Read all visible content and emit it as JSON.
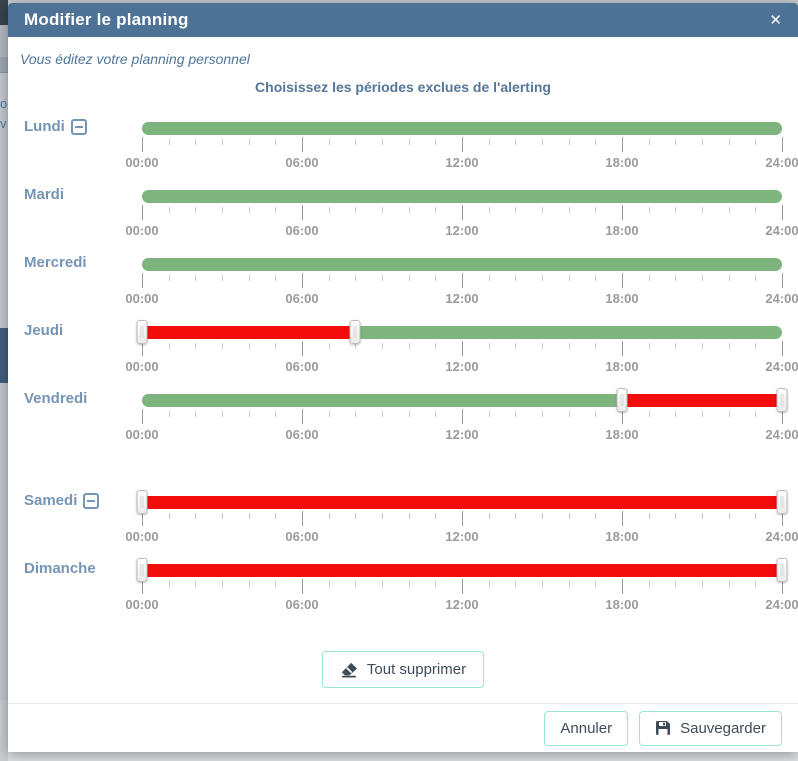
{
  "background": {
    "fragments": [
      "on",
      "v"
    ]
  },
  "modal": {
    "title": "Modifier le planning",
    "icons": {
      "close": "✕"
    },
    "subtitle": "Vous éditez votre planning personnel",
    "heading": "Choisissez les périodes exclues de l'alerting"
  },
  "schedule": {
    "axis": {
      "hours_total": 24,
      "minor_tick_every_hours": 1,
      "major_tick_hours": [
        0,
        6,
        12,
        18,
        24
      ],
      "tick_labels": [
        "00:00",
        "06:00",
        "12:00",
        "18:00",
        "24:00"
      ]
    },
    "days": [
      {
        "label": "Lundi",
        "has_collapse_icon": true,
        "gap_before": false,
        "segments": [
          {
            "state": "active",
            "from_hour": 0,
            "to_hour": 24
          }
        ],
        "handle_hours": []
      },
      {
        "label": "Mardi",
        "has_collapse_icon": false,
        "gap_before": false,
        "segments": [
          {
            "state": "active",
            "from_hour": 0,
            "to_hour": 24
          }
        ],
        "handle_hours": []
      },
      {
        "label": "Mercredi",
        "has_collapse_icon": false,
        "gap_before": false,
        "segments": [
          {
            "state": "active",
            "from_hour": 0,
            "to_hour": 24
          }
        ],
        "handle_hours": []
      },
      {
        "label": "Jeudi",
        "has_collapse_icon": false,
        "gap_before": false,
        "segments": [
          {
            "state": "excluded",
            "from_hour": 0,
            "to_hour": 8
          },
          {
            "state": "active",
            "from_hour": 8,
            "to_hour": 24
          }
        ],
        "handle_hours": [
          0,
          8
        ]
      },
      {
        "label": "Vendredi",
        "has_collapse_icon": false,
        "gap_before": false,
        "segments": [
          {
            "state": "active",
            "from_hour": 0,
            "to_hour": 18
          },
          {
            "state": "excluded",
            "from_hour": 18,
            "to_hour": 24
          }
        ],
        "handle_hours": [
          18,
          24
        ]
      },
      {
        "label": "Samedi",
        "has_collapse_icon": true,
        "gap_before": true,
        "segments": [
          {
            "state": "excluded",
            "from_hour": 0,
            "to_hour": 24
          }
        ],
        "handle_hours": [
          0,
          24
        ]
      },
      {
        "label": "Dimanche",
        "has_collapse_icon": false,
        "gap_before": false,
        "segments": [
          {
            "state": "excluded",
            "from_hour": 0,
            "to_hour": 24
          }
        ],
        "handle_hours": [
          0,
          24
        ]
      }
    ]
  },
  "actions": {
    "clear_all": "Tout supprimer",
    "cancel": "Annuler",
    "save": "Sauvegarder"
  },
  "colors": {
    "header_bg": "#4e7296",
    "active": "#7eb57e",
    "excluded": "#f30c0c",
    "accent_border": "#97e6da",
    "day_label": "#7595b5",
    "tick_label": "#9b9b9b"
  }
}
